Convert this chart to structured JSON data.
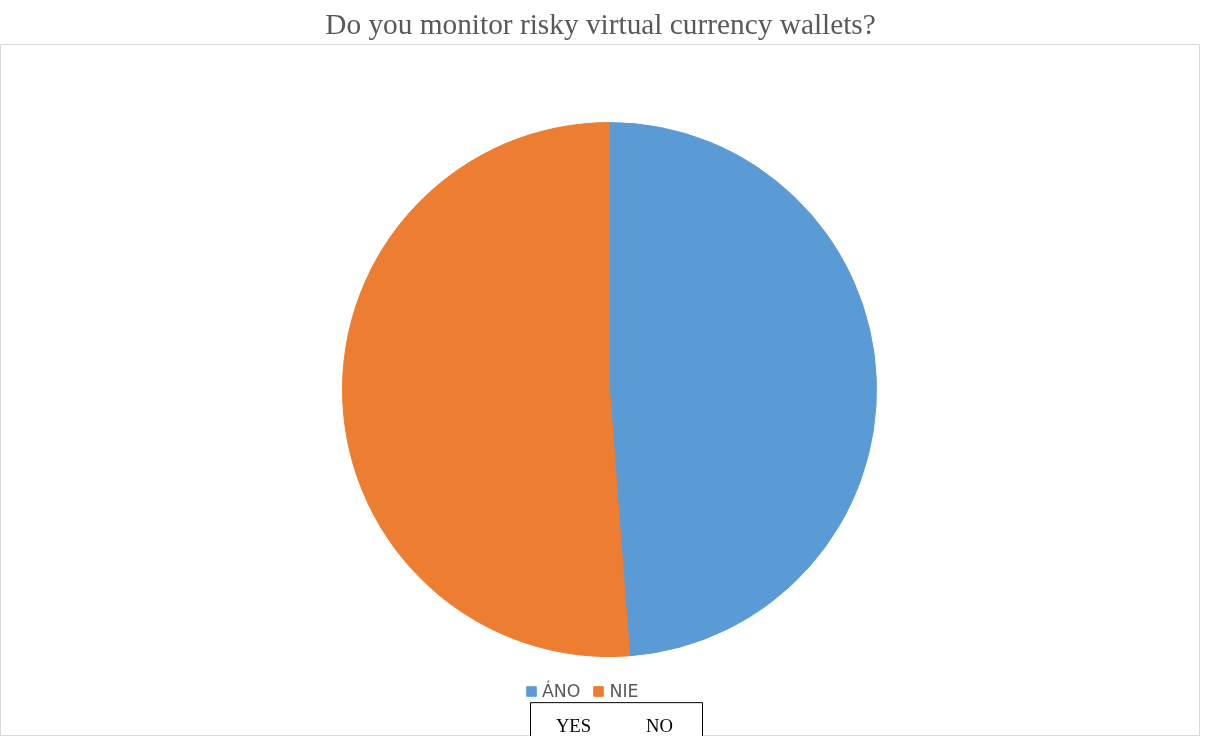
{
  "chart_data": {
    "type": "pie",
    "title": "Do you monitor risky virtual currency wallets?",
    "categories": [
      "ÁNO",
      "NIE"
    ],
    "values": [
      48.8,
      51.2
    ],
    "colors": [
      "#5b9bd5",
      "#ed7d31"
    ],
    "legend": "bottom",
    "annotations": [
      "YES",
      "NO"
    ]
  }
}
